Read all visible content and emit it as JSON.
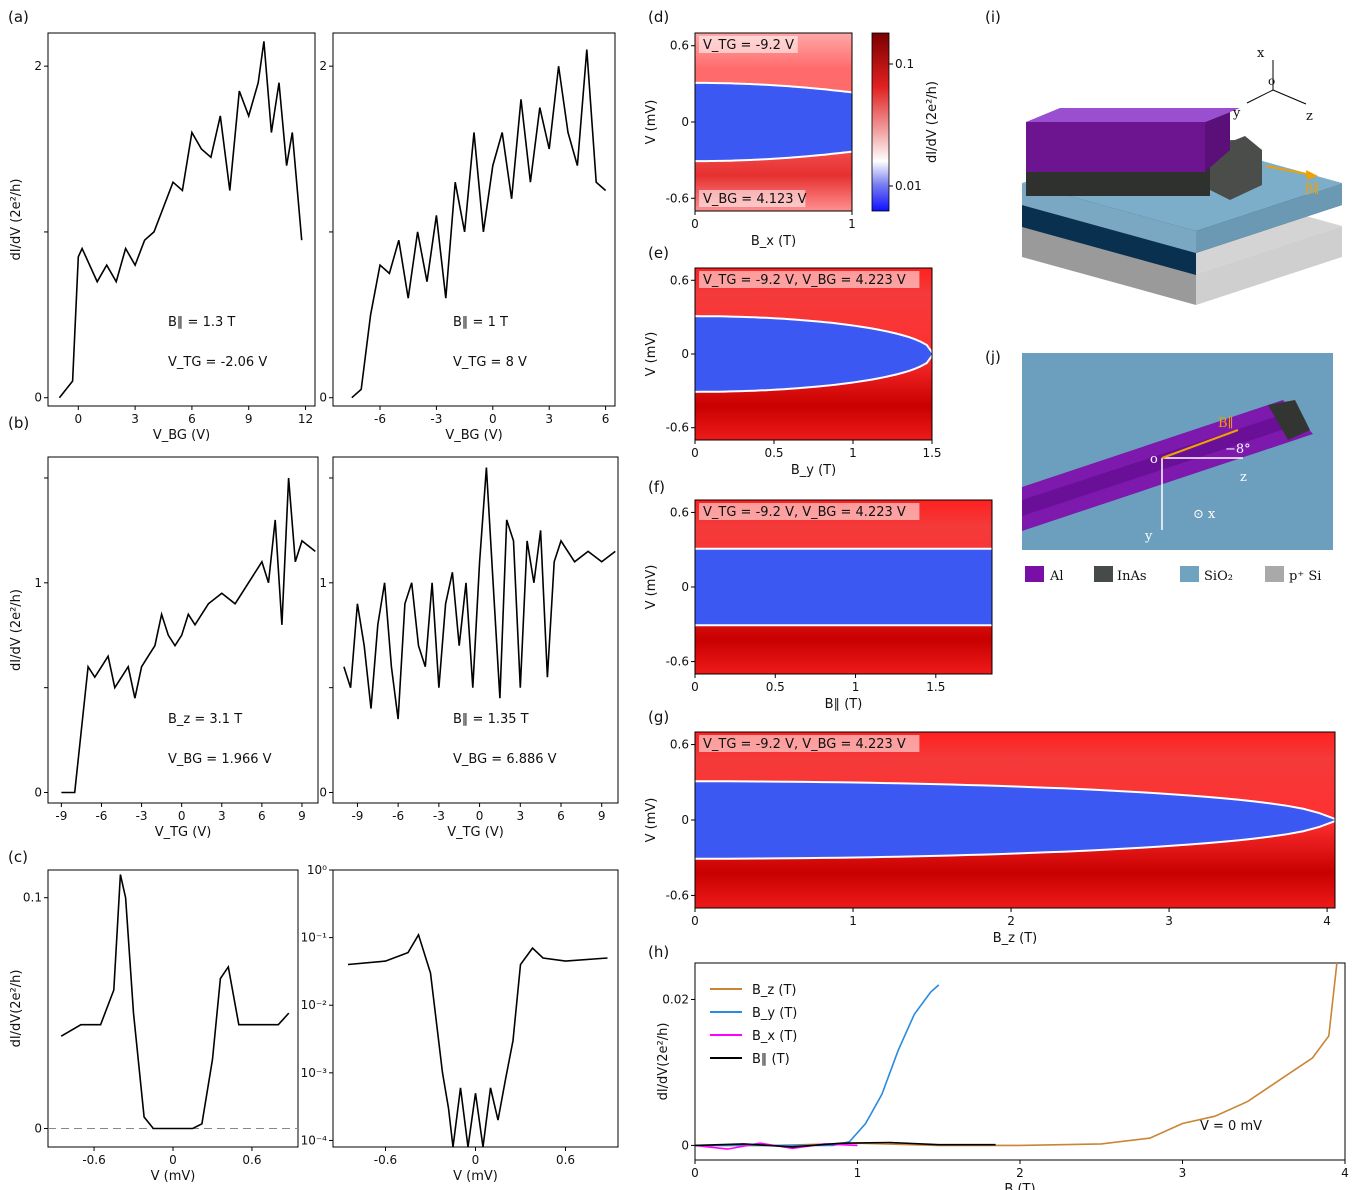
{
  "panel_labels": {
    "a": "(a)",
    "b": "(b)",
    "c": "(c)",
    "d": "(d)",
    "e": "(e)",
    "f": "(f)",
    "g": "(g)",
    "h": "(h)",
    "i": "(i)",
    "j": "(j)"
  },
  "colorbar": {
    "label": "dI/dV (2e²/h)",
    "ticks": [
      "0.1",
      "0.01"
    ]
  },
  "schematic_i": {
    "axes": [
      "x",
      "y",
      "z"
    ],
    "origin": "o",
    "field_label": "B∥"
  },
  "schematic_j": {
    "origin": "o",
    "field_label": "B∥",
    "angle_label": "−8°",
    "z_label": "z",
    "y_label": "y",
    "x_label": "⊙ x"
  },
  "legend_materials": [
    {
      "name": "Al",
      "color": "#7a0fa8"
    },
    {
      "name": "InAs",
      "color": "#474b47"
    },
    {
      "name": "SiO₂",
      "color": "#6fa3c0"
    },
    {
      "name": "p⁺ Si",
      "color": "#a9a9a9"
    }
  ],
  "chart_data": [
    {
      "id": "a-left",
      "type": "line",
      "xlabel": "V_BG (V)",
      "ylabel": "dI/dV (2e²/h)",
      "xlim": [
        -1.6,
        12.5
      ],
      "ylim": [
        -0.05,
        2.2
      ],
      "xticks": [
        0,
        3,
        6,
        9,
        12
      ],
      "yticks": [
        0,
        1,
        2
      ],
      "ytick_labels": [
        "0",
        "",
        "2"
      ],
      "x": [
        -1.0,
        -0.3,
        0,
        0.2,
        1,
        1.5,
        2,
        2.5,
        3,
        3.5,
        4,
        4.5,
        5,
        5.5,
        6,
        6.5,
        7,
        7.5,
        8,
        8.5,
        9,
        9.5,
        9.8,
        10.2,
        10.6,
        11,
        11.3,
        11.8
      ],
      "y": [
        0,
        0.1,
        0.85,
        0.9,
        0.7,
        0.8,
        0.7,
        0.9,
        0.8,
        0.95,
        1.0,
        1.15,
        1.3,
        1.25,
        1.6,
        1.5,
        1.45,
        1.7,
        1.25,
        1.85,
        1.7,
        1.9,
        2.15,
        1.6,
        1.9,
        1.4,
        1.6,
        0.95
      ],
      "annotations": [
        "B∥ = 1.3 T",
        "V_TG = -2.06 V"
      ]
    },
    {
      "id": "a-right",
      "type": "line",
      "xlabel": "V_BG (V)",
      "ylabel": "",
      "xlim": [
        -8.5,
        6.5
      ],
      "ylim": [
        -0.05,
        2.2
      ],
      "xticks": [
        -6,
        -3,
        0,
        3,
        6
      ],
      "yticks": [
        0,
        1,
        2
      ],
      "ytick_labels": [
        "0",
        "",
        "2"
      ],
      "x": [
        -7.5,
        -7.0,
        -6.5,
        -6.0,
        -5.5,
        -5.0,
        -4.5,
        -4.0,
        -3.5,
        -3.0,
        -2.5,
        -2.0,
        -1.5,
        -1.0,
        -0.5,
        0,
        0.5,
        1,
        1.5,
        2,
        2.5,
        3,
        3.5,
        4,
        4.5,
        5,
        5.5,
        6
      ],
      "y": [
        0,
        0.05,
        0.5,
        0.8,
        0.75,
        0.95,
        0.6,
        1.0,
        0.7,
        1.1,
        0.6,
        1.3,
        1.0,
        1.6,
        1.0,
        1.4,
        1.6,
        1.2,
        1.8,
        1.3,
        1.75,
        1.5,
        2.0,
        1.6,
        1.4,
        2.1,
        1.3,
        1.25
      ],
      "annotations": [
        "B∥ = 1 T",
        "V_TG = 8 V"
      ]
    },
    {
      "id": "b-left",
      "type": "line",
      "xlabel": "V_TG (V)",
      "ylabel": "dI/dV (2e²/h)",
      "xlim": [
        -10,
        10.2
      ],
      "ylim": [
        -0.05,
        1.6
      ],
      "xticks": [
        -9,
        -6,
        -3,
        0,
        3,
        6,
        9
      ],
      "yticks": [
        0,
        0.5,
        1,
        1.5
      ],
      "ytick_labels": [
        "0",
        "",
        "1",
        ""
      ],
      "x": [
        -9,
        -8,
        -7.5,
        -7,
        -6.5,
        -6,
        -5.5,
        -5,
        -4.5,
        -4,
        -3.5,
        -3,
        -2.5,
        -2,
        -1.5,
        -1,
        -0.5,
        0,
        0.5,
        1,
        2,
        3,
        4,
        5,
        6,
        6.5,
        7,
        7.5,
        8,
        8.5,
        9,
        10
      ],
      "y": [
        0,
        0,
        0.3,
        0.6,
        0.55,
        0.6,
        0.65,
        0.5,
        0.55,
        0.6,
        0.45,
        0.6,
        0.65,
        0.7,
        0.85,
        0.75,
        0.7,
        0.75,
        0.85,
        0.8,
        0.9,
        0.95,
        0.9,
        1.0,
        1.1,
        1.0,
        1.3,
        0.8,
        1.5,
        1.1,
        1.2,
        1.15
      ],
      "annotations": [
        "B_z = 3.1 T",
        "V_BG = 1.966 V"
      ]
    },
    {
      "id": "b-right",
      "type": "line",
      "xlabel": "V_TG (V)",
      "ylabel": "",
      "xlim": [
        -10.8,
        10.2
      ],
      "ylim": [
        -0.05,
        1.6
      ],
      "xticks": [
        -9,
        -6,
        -3,
        0,
        3,
        6,
        9
      ],
      "yticks": [
        0,
        0.5,
        1,
        1.5
      ],
      "ytick_labels": [
        "0",
        "",
        "1",
        ""
      ],
      "x": [
        -10,
        -9.5,
        -9,
        -8.5,
        -8,
        -7.5,
        -7,
        -6.5,
        -6,
        -5.5,
        -5,
        -4.5,
        -4,
        -3.5,
        -3,
        -2.5,
        -2,
        -1.5,
        -1,
        -0.5,
        0,
        0.5,
        1,
        1.5,
        2,
        2.5,
        3,
        3.5,
        4,
        4.5,
        5,
        5.5,
        6,
        7,
        8,
        9,
        10
      ],
      "y": [
        0.6,
        0.5,
        0.9,
        0.7,
        0.4,
        0.8,
        1.0,
        0.6,
        0.35,
        0.9,
        1.0,
        0.7,
        0.6,
        1.0,
        0.5,
        0.9,
        1.05,
        0.7,
        1.0,
        0.5,
        1.1,
        1.55,
        1.0,
        0.45,
        1.3,
        1.2,
        0.5,
        1.2,
        1.0,
        1.25,
        0.55,
        1.1,
        1.2,
        1.1,
        1.15,
        1.1,
        1.15
      ],
      "annotations": [
        "B∥ = 1.35 T",
        "V_BG = 6.886 V"
      ]
    },
    {
      "id": "c-left",
      "type": "line",
      "xlabel": "V (mV)",
      "ylabel": "dI/dV(2e²/h)",
      "xlim": [
        -0.95,
        0.95
      ],
      "ylim": [
        -0.008,
        0.112
      ],
      "xticks": [
        -0.6,
        0,
        0.6
      ],
      "yticks": [
        0,
        0.1
      ],
      "x": [
        -0.85,
        -0.7,
        -0.55,
        -0.45,
        -0.4,
        -0.36,
        -0.3,
        -0.22,
        -0.15,
        -0.05,
        0,
        0.05,
        0.15,
        0.22,
        0.3,
        0.36,
        0.42,
        0.5,
        0.65,
        0.8,
        0.88
      ],
      "y": [
        0.04,
        0.045,
        0.045,
        0.06,
        0.11,
        0.1,
        0.05,
        0.005,
        0,
        0,
        0,
        0,
        0,
        0.002,
        0.03,
        0.065,
        0.07,
        0.045,
        0.045,
        0.045,
        0.05
      ],
      "dashed_zero": true
    },
    {
      "id": "c-right",
      "type": "line",
      "scale": "log",
      "xlabel": "V (mV)",
      "ylabel": "",
      "xlim": [
        -0.95,
        0.95
      ],
      "ylim": [
        8e-05,
        1
      ],
      "xticks": [
        -0.6,
        0,
        0.6
      ],
      "yticks": [
        "10⁰",
        "10⁻¹",
        "10⁻²",
        "10⁻³",
        "10⁻⁴"
      ],
      "x": [
        -0.85,
        -0.6,
        -0.45,
        -0.38,
        -0.3,
        -0.22,
        -0.18,
        -0.15,
        -0.1,
        -0.05,
        0,
        0.05,
        0.1,
        0.15,
        0.2,
        0.25,
        0.3,
        0.38,
        0.45,
        0.6,
        0.88
      ],
      "y": [
        0.04,
        0.045,
        0.06,
        0.11,
        0.03,
        0.001,
        0.0003,
        8e-05,
        0.0006,
        8e-05,
        0.0005,
        8e-05,
        0.0006,
        0.0002,
        0.0008,
        0.003,
        0.04,
        0.07,
        0.05,
        0.045,
        0.05
      ]
    },
    {
      "id": "d",
      "type": "heatmap",
      "xlabel": "B_x (T)",
      "ylabel": "V (mV)",
      "xlim": [
        0,
        1
      ],
      "ylim": [
        -0.7,
        0.7
      ],
      "xticks": [
        "0",
        "1"
      ],
      "yticks": [
        "0.6",
        "0",
        "-0.6"
      ],
      "annotations": [
        "V_TG = -9.2 V",
        "V_BG = 4.123 V"
      ],
      "gap_end": null
    },
    {
      "id": "e",
      "type": "heatmap",
      "xlabel": "B_y (T)",
      "ylabel": "V (mV)",
      "xlim": [
        0,
        1.5
      ],
      "ylim": [
        -0.7,
        0.7
      ],
      "xticks": [
        "0",
        "0.5",
        "1",
        "1.5"
      ],
      "yticks": [
        "0.6",
        "0",
        "-0.6"
      ],
      "annotations": [
        "V_TG = -9.2 V, V_BG = 4.223 V"
      ],
      "gap_end": 1.5
    },
    {
      "id": "f",
      "type": "heatmap",
      "xlabel": "B∥ (T)",
      "ylabel": "V (mV)",
      "xlim": [
        0,
        1.85
      ],
      "ylim": [
        -0.7,
        0.7
      ],
      "xticks": [
        "0",
        "0.5",
        "1",
        "1.5"
      ],
      "yticks": [
        "0.6",
        "0",
        "-0.6"
      ],
      "annotations": [
        "V_TG = -9.2 V, V_BG = 4.223 V"
      ],
      "gap_end": null
    },
    {
      "id": "g",
      "type": "heatmap",
      "xlabel": "B_z (T)",
      "ylabel": "V (mV)",
      "xlim": [
        0,
        4.05
      ],
      "ylim": [
        -0.7,
        0.7
      ],
      "xticks": [
        "0",
        "1",
        "2",
        "3",
        "4"
      ],
      "yticks": [
        "0.6",
        "0",
        "-0.6"
      ],
      "annotations": [
        "V_TG = -9.2 V, V_BG = 4.223 V"
      ],
      "gap_end": 4.0
    },
    {
      "id": "h",
      "type": "line",
      "xlabel": "B (T)",
      "ylabel": "dI/dV(2e²/h)",
      "xlim": [
        0,
        4
      ],
      "ylim": [
        -0.002,
        0.025
      ],
      "xticks": [
        "0",
        "1",
        "2",
        "3",
        "4"
      ],
      "yticks": [
        "0",
        "0.02"
      ],
      "annotations": [
        "V = 0 mV"
      ],
      "series": [
        {
          "name": "B_z (T)",
          "color": "#c98534",
          "x": [
            0,
            0.5,
            1,
            1.5,
            2,
            2.5,
            2.8,
            3.0,
            3.2,
            3.4,
            3.6,
            3.8,
            3.9,
            3.95
          ],
          "y": [
            0,
            0,
            0.0003,
            0,
            0,
            0.0002,
            0.001,
            0.003,
            0.004,
            0.006,
            0.009,
            0.012,
            0.015,
            0.025
          ]
        },
        {
          "name": "B_y (T)",
          "color": "#2a8ae0",
          "x": [
            0,
            0.5,
            0.85,
            0.95,
            1.05,
            1.15,
            1.25,
            1.35,
            1.45,
            1.5
          ],
          "y": [
            0,
            0,
            0,
            0.0005,
            0.003,
            0.007,
            0.013,
            0.018,
            0.021,
            0.022
          ]
        },
        {
          "name": "B_x (T)",
          "color": "#ff00ff",
          "x": [
            0,
            0.2,
            0.4,
            0.6,
            0.8,
            1.0
          ],
          "y": [
            0,
            -0.0005,
            0.0003,
            -0.0004,
            0.0002,
            0
          ]
        },
        {
          "name": "B∥ (T)",
          "color": "#000000",
          "x": [
            0,
            0.3,
            0.6,
            0.9,
            1.2,
            1.5,
            1.85
          ],
          "y": [
            0,
            0.0002,
            -0.0002,
            0.0003,
            0.0004,
            0.0001,
            0.0001
          ]
        }
      ]
    }
  ]
}
